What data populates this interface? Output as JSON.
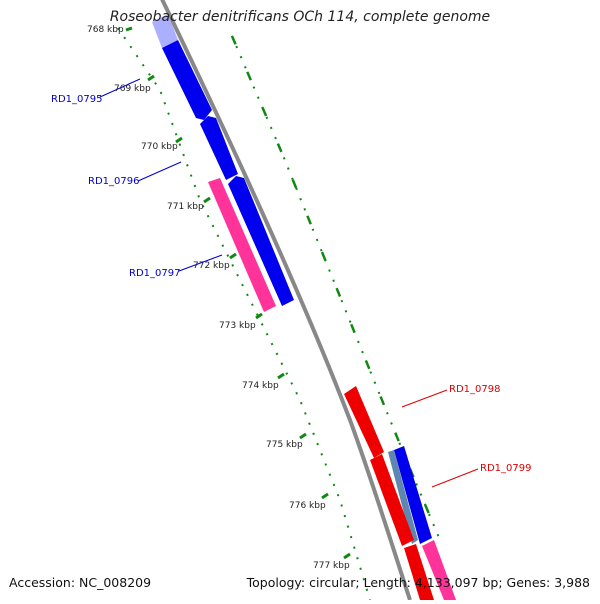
{
  "title": "Roseobacter denitrificans OCh 114, complete genome",
  "accession": "Accession: NC_008209",
  "summary": "Topology: circular; Length: 4,133,097 bp; Genes: 3,988",
  "ticks": [
    "768 kbp",
    "769 kbp",
    "770 kbp",
    "771 kbp",
    "772 kbp",
    "773 kbp",
    "774 kbp",
    "775 kbp",
    "776 kbp",
    "777 kbp"
  ],
  "genes": [
    {
      "label": "RD1_0795",
      "color": "#0000cc"
    },
    {
      "label": "RD1_0796",
      "color": "#0000cc"
    },
    {
      "label": "RD1_0797",
      "color": "#0000cc"
    },
    {
      "label": "RD1_0798",
      "color": "#dd0000"
    },
    {
      "label": "RD1_0799",
      "color": "#dd0000"
    }
  ],
  "colors": {
    "forward_cds": "#0000ee",
    "reverse_cds": "#ee0000",
    "other_feature": "#ff3399",
    "backbone": "#888888",
    "ruler": "#118811"
  }
}
